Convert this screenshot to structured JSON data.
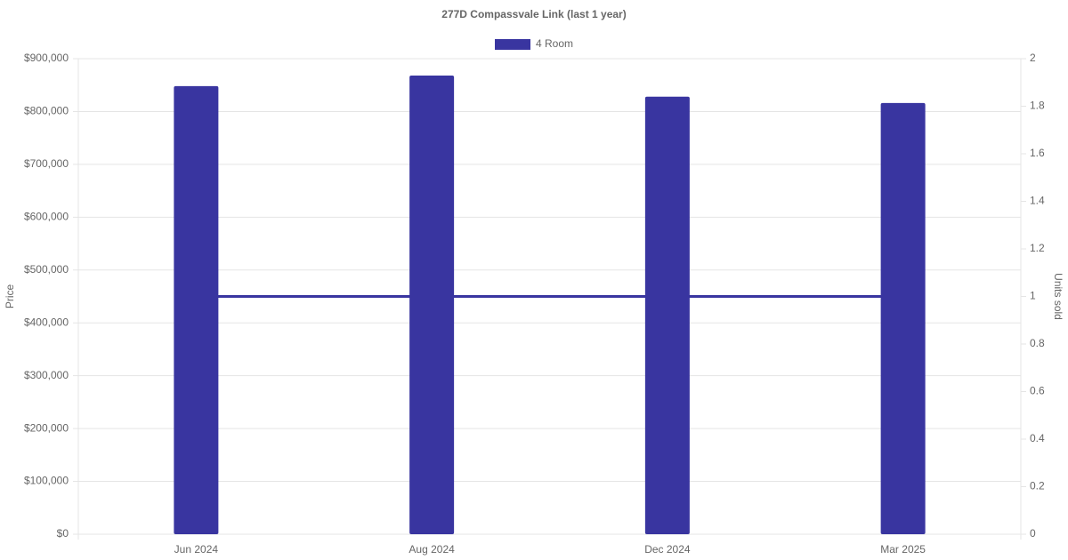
{
  "chart_data": {
    "type": "bar",
    "title": "277D Compassvale Link (last 1 year)",
    "categories": [
      "Jun 2024",
      "Aug 2024",
      "Dec 2024",
      "Mar 2025"
    ],
    "series": [
      {
        "name": "4 Room",
        "type": "bar",
        "color": "#3935a0",
        "values": [
          848000,
          868000,
          828000,
          816000
        ]
      },
      {
        "type": "line",
        "axis": "y2",
        "color": "#3935a0",
        "values": [
          1,
          1,
          1,
          1
        ]
      }
    ],
    "ylabel": "Price",
    "y2label": "Units sold",
    "ylim": [
      0,
      900000
    ],
    "yticks": [
      {
        "value": 0,
        "label": "$0"
      },
      {
        "value": 100000,
        "label": "$100,000"
      },
      {
        "value": 200000,
        "label": "$200,000"
      },
      {
        "value": 300000,
        "label": "$300,000"
      },
      {
        "value": 400000,
        "label": "$400,000"
      },
      {
        "value": 500000,
        "label": "$500,000"
      },
      {
        "value": 600000,
        "label": "$600,000"
      },
      {
        "value": 700000,
        "label": "$700,000"
      },
      {
        "value": 800000,
        "label": "$800,000"
      },
      {
        "value": 900000,
        "label": "$900,000"
      }
    ],
    "y2lim": [
      0,
      2
    ],
    "y2ticks": [
      0,
      0.2,
      0.4,
      0.6,
      0.8,
      1,
      1.2,
      1.4,
      1.6,
      1.8,
      2
    ],
    "grid": true,
    "legend": "top"
  }
}
